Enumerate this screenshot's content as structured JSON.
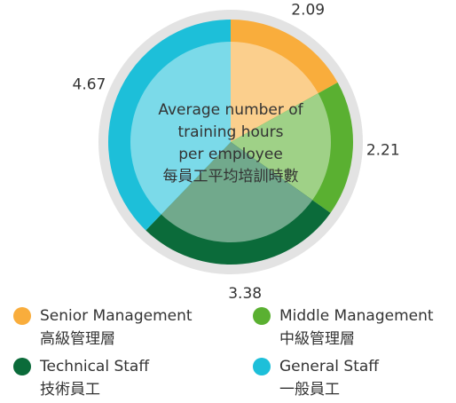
{
  "chart_data": {
    "type": "donut",
    "center_label": [
      "Average number of",
      "training hours",
      "per employee",
      "每員工平均培訓時數"
    ],
    "categories": [
      "Senior Management",
      "Middle Management",
      "Technical Staff",
      "General Staff"
    ],
    "categories_zh": [
      "高級管理層",
      "中級管理層",
      "技術員工",
      "一般員工"
    ],
    "values": [
      2.09,
      2.21,
      3.38,
      4.67
    ],
    "colors": [
      "#f9ad3c",
      "#5ab031",
      "#0b6b3a",
      "#1dbfd9"
    ]
  }
}
